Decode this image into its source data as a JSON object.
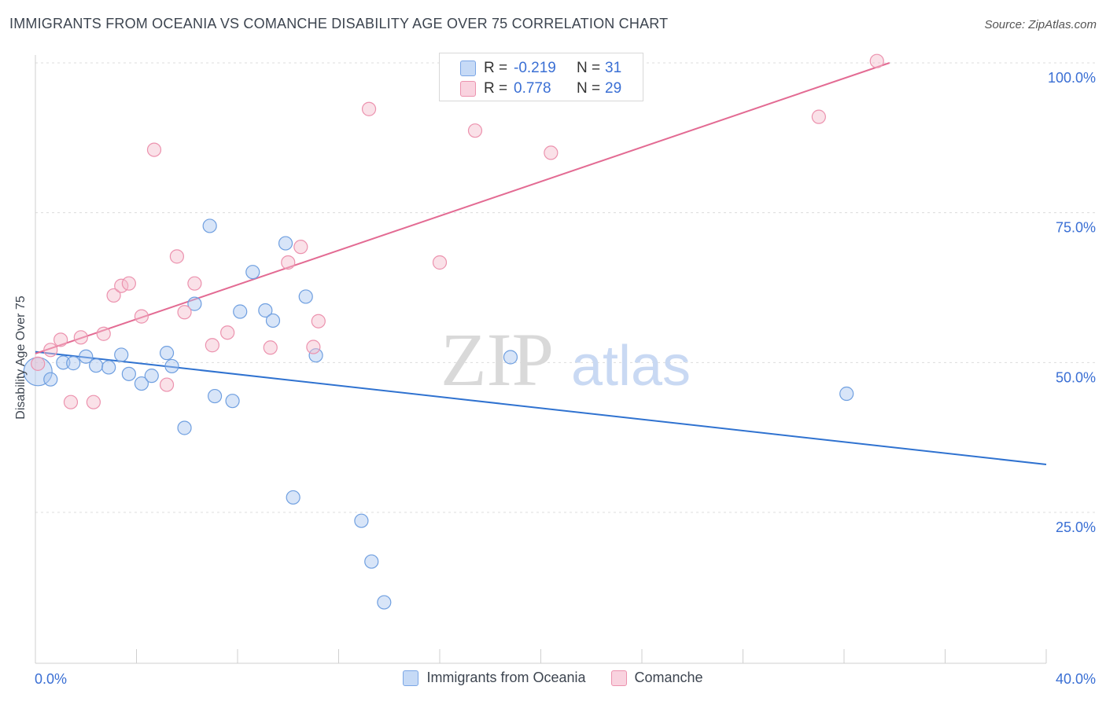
{
  "header": {
    "title": "IMMIGRANTS FROM OCEANIA VS COMANCHE DISABILITY AGE OVER 75 CORRELATION CHART",
    "source": "Source: ZipAtlas.com"
  },
  "watermark": {
    "zip": "ZIP",
    "atlas": "atlas"
  },
  "stats": [
    {
      "r_label": "R =",
      "r_value": "-0.219",
      "n_label": "N =",
      "n_value": "31",
      "color": "#a9c6f0",
      "border": "#7aa6e6"
    },
    {
      "r_label": "R =",
      "r_value": "0.778",
      "n_label": "N =",
      "n_value": "29",
      "color": "#f5bccd",
      "border": "#ec92ae"
    }
  ],
  "chart_data": {
    "type": "scatter",
    "title": "IMMIGRANTS FROM OCEANIA VS COMANCHE DISABILITY AGE OVER 75 CORRELATION CHART",
    "xlabel": "",
    "ylabel": "Disability Age Over 75",
    "xlim": [
      0,
      40
    ],
    "ylim": [
      0,
      103
    ],
    "x_tick_labels": [
      "0.0%",
      "40.0%"
    ],
    "y_ticks": [
      25,
      50,
      75,
      100
    ],
    "y_tick_labels": [
      "25.0%",
      "50.0%",
      "75.0%",
      "100.0%"
    ],
    "grid": true,
    "legend_position": "bottom",
    "series": [
      {
        "name": "Immigrants from Oceania",
        "color": "#a9c6f0",
        "stroke": "#6f9fe0",
        "line_color": "#2f72d0",
        "trend": {
          "x": [
            0,
            40
          ],
          "y": [
            51.8,
            33.0
          ]
        },
        "points": [
          {
            "x": 0.1,
            "y": 48.5,
            "big": true
          },
          {
            "x": 0.6,
            "y": 47.2
          },
          {
            "x": 1.1,
            "y": 50.0
          },
          {
            "x": 1.5,
            "y": 49.9
          },
          {
            "x": 2.0,
            "y": 51.0
          },
          {
            "x": 2.4,
            "y": 49.5
          },
          {
            "x": 2.9,
            "y": 49.2
          },
          {
            "x": 3.4,
            "y": 51.3
          },
          {
            "x": 3.7,
            "y": 48.1
          },
          {
            "x": 4.2,
            "y": 46.5
          },
          {
            "x": 4.6,
            "y": 47.8
          },
          {
            "x": 5.2,
            "y": 51.6
          },
          {
            "x": 5.4,
            "y": 49.4
          },
          {
            "x": 5.9,
            "y": 39.1
          },
          {
            "x": 6.3,
            "y": 59.8
          },
          {
            "x": 6.9,
            "y": 72.8
          },
          {
            "x": 7.1,
            "y": 44.4
          },
          {
            "x": 7.8,
            "y": 43.6
          },
          {
            "x": 8.1,
            "y": 58.5
          },
          {
            "x": 8.6,
            "y": 65.1
          },
          {
            "x": 9.1,
            "y": 58.7
          },
          {
            "x": 9.4,
            "y": 57.0
          },
          {
            "x": 9.9,
            "y": 69.9
          },
          {
            "x": 10.2,
            "y": 27.5
          },
          {
            "x": 10.7,
            "y": 61.0
          },
          {
            "x": 11.1,
            "y": 51.2
          },
          {
            "x": 12.9,
            "y": 23.6
          },
          {
            "x": 13.3,
            "y": 16.8
          },
          {
            "x": 13.8,
            "y": 10.0
          },
          {
            "x": 18.8,
            "y": 50.9
          },
          {
            "x": 32.1,
            "y": 44.8
          }
        ]
      },
      {
        "name": "Comanche",
        "color": "#f5bccd",
        "stroke": "#ec92ae",
        "line_color": "#e36b93",
        "trend": {
          "x": [
            0,
            33.8
          ],
          "y": [
            51.5,
            100.0
          ]
        },
        "points": [
          {
            "x": 0.1,
            "y": 49.8
          },
          {
            "x": 0.6,
            "y": 52.1
          },
          {
            "x": 1.0,
            "y": 53.8
          },
          {
            "x": 1.4,
            "y": 43.4
          },
          {
            "x": 1.8,
            "y": 54.2
          },
          {
            "x": 2.3,
            "y": 43.4
          },
          {
            "x": 2.7,
            "y": 54.8
          },
          {
            "x": 3.1,
            "y": 61.2
          },
          {
            "x": 3.4,
            "y": 62.8
          },
          {
            "x": 3.7,
            "y": 63.2
          },
          {
            "x": 4.2,
            "y": 57.7
          },
          {
            "x": 4.7,
            "y": 85.5
          },
          {
            "x": 5.2,
            "y": 46.3
          },
          {
            "x": 5.6,
            "y": 67.7
          },
          {
            "x": 5.9,
            "y": 58.4
          },
          {
            "x": 6.3,
            "y": 63.2
          },
          {
            "x": 7.0,
            "y": 52.9
          },
          {
            "x": 7.6,
            "y": 55.0
          },
          {
            "x": 9.3,
            "y": 52.5
          },
          {
            "x": 10.0,
            "y": 66.7
          },
          {
            "x": 10.5,
            "y": 69.3
          },
          {
            "x": 11.0,
            "y": 52.6
          },
          {
            "x": 11.2,
            "y": 56.9
          },
          {
            "x": 13.2,
            "y": 92.3
          },
          {
            "x": 16.0,
            "y": 66.7
          },
          {
            "x": 17.4,
            "y": 88.7
          },
          {
            "x": 20.4,
            "y": 85.0
          },
          {
            "x": 31.0,
            "y": 91.0
          },
          {
            "x": 33.3,
            "y": 100.3
          }
        ]
      }
    ]
  }
}
